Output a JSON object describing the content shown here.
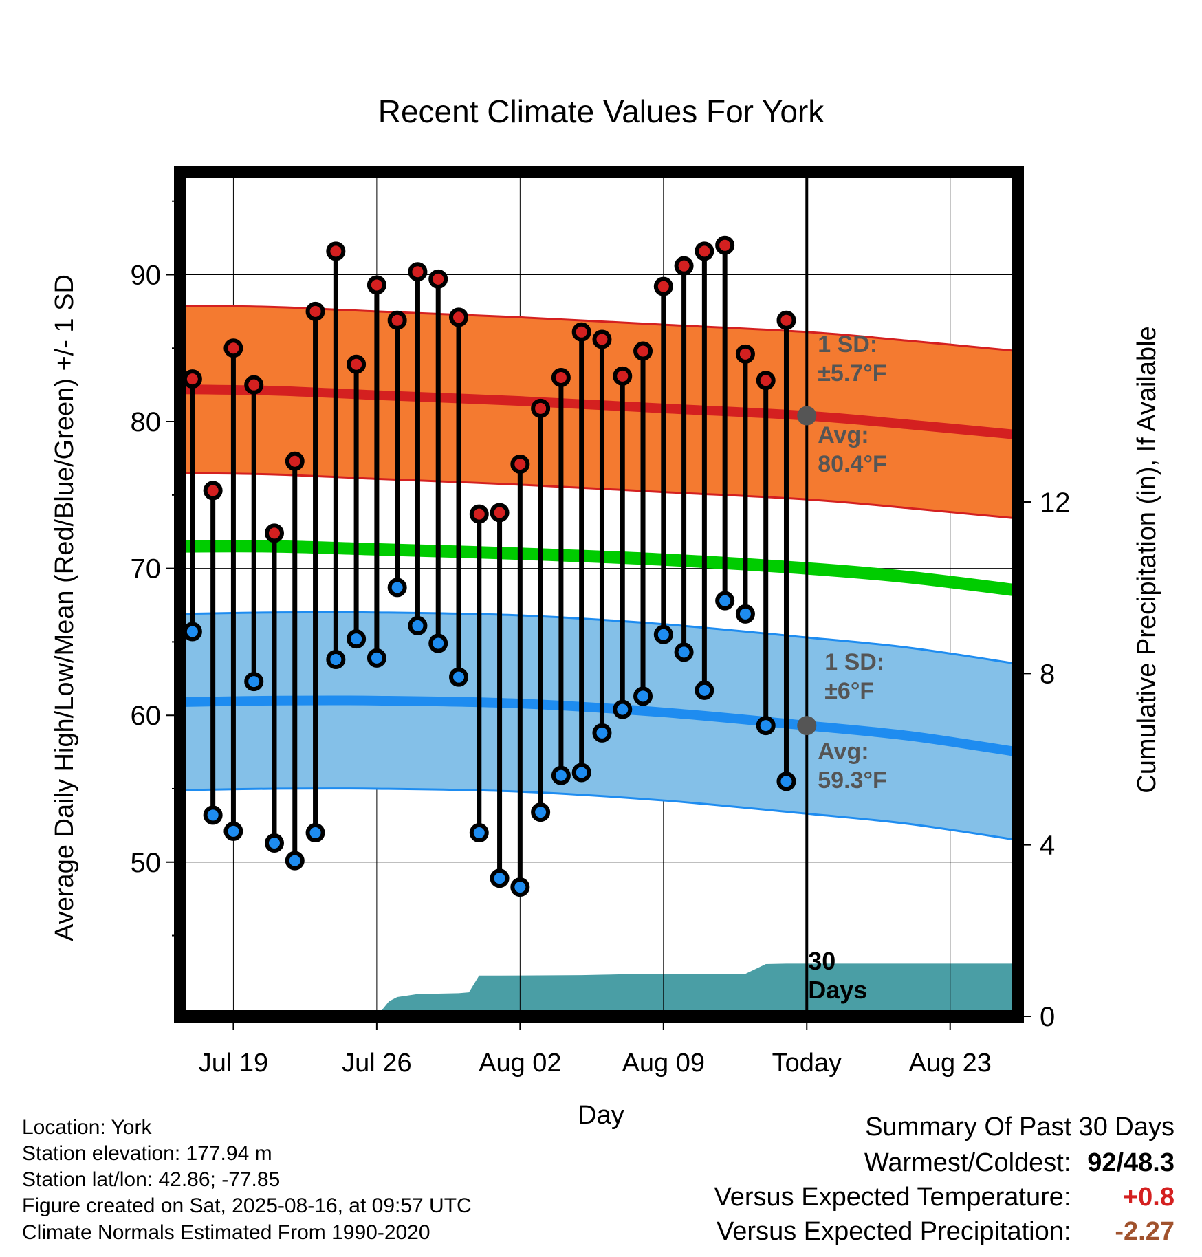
{
  "chart_data": {
    "type": "line",
    "title": "Recent Climate Values For York",
    "xlabel": "Day",
    "ylabel": "Average Daily High/Low/Mean (Red/Blue/Green) +/- 1 SD",
    "ylabel_right": "Cumulative Precipitation (in), If Available",
    "ylim": [
      39.5,
      97
    ],
    "y_ticks": [
      50,
      60,
      70,
      80,
      90
    ],
    "y_minor_ticks": [
      45,
      55,
      65,
      75,
      85,
      95
    ],
    "ylim_right": [
      0,
      19.7
    ],
    "y_right_ticks": [
      0,
      4,
      8,
      12
    ],
    "xlim": [
      -1.6,
      39.3
    ],
    "x_ticks": [
      {
        "day": 1,
        "label": "Jul 19"
      },
      {
        "day": 8,
        "label": "Jul 26"
      },
      {
        "day": 15,
        "label": "Aug 02"
      },
      {
        "day": 22,
        "label": "Aug 09"
      },
      {
        "day": 29,
        "label": "Today"
      },
      {
        "day": 36,
        "label": "Aug 23"
      }
    ],
    "today_day": 29,
    "days": [
      -1,
      0,
      1,
      2,
      3,
      4,
      5,
      6,
      7,
      8,
      9,
      10,
      11,
      12,
      13,
      14,
      15,
      16,
      17,
      18,
      19,
      20,
      21,
      22,
      23,
      24,
      25,
      26,
      27,
      28
    ],
    "series": [
      {
        "name": "High",
        "color": "#d42020",
        "values": [
          82.9,
          75.3,
          85.0,
          82.5,
          72.4,
          77.3,
          87.5,
          91.6,
          83.9,
          89.3,
          86.9,
          90.2,
          89.7,
          87.1,
          73.7,
          73.8,
          77.1,
          80.9,
          83.0,
          86.1,
          85.6,
          83.1,
          84.8,
          89.2,
          90.6,
          91.6,
          92.0,
          84.6,
          82.8,
          86.9
        ]
      },
      {
        "name": "Low",
        "color": "#1e8cf0",
        "values": [
          65.7,
          53.2,
          52.1,
          62.3,
          51.3,
          50.1,
          52.0,
          63.8,
          65.2,
          63.9,
          68.7,
          66.1,
          64.9,
          62.6,
          52.0,
          48.9,
          48.3,
          53.4,
          55.9,
          56.1,
          58.8,
          60.4,
          61.3,
          65.5,
          64.3,
          61.7,
          67.8,
          66.9,
          59.3,
          55.5
        ]
      }
    ],
    "normals": {
      "days": [
        -1.6,
        3,
        8,
        15,
        22,
        29,
        34,
        39.3
      ],
      "high_mean": [
        82.2,
        82.1,
        81.8,
        81.4,
        80.9,
        80.4,
        79.8,
        79.1
      ],
      "high_sd": 5.7,
      "mean": [
        71.5,
        71.5,
        71.3,
        71.0,
        70.6,
        70.0,
        69.4,
        68.5
      ],
      "low_mean": [
        60.9,
        61.0,
        61.0,
        60.8,
        60.2,
        59.3,
        58.6,
        57.5
      ],
      "low_sd": 6
    },
    "precipitation": {
      "color": "#4a9ea5",
      "days": [
        -1.6,
        8.0,
        8.6,
        9.0,
        10.0,
        11.0,
        12.0,
        12.5,
        13.0,
        14.0,
        18.0,
        19.0,
        20.0,
        22.0,
        23.0,
        26.0,
        27.0,
        28.0,
        39.3
      ],
      "cumulative": [
        0,
        0,
        0.35,
        0.45,
        0.52,
        0.53,
        0.54,
        0.56,
        0.95,
        0.95,
        0.96,
        0.97,
        0.98,
        0.98,
        0.98,
        0.99,
        1.22,
        1.23,
        1.23
      ]
    },
    "high_colors": {
      "band": "#f47a30",
      "band_edge": "#d42020",
      "mean": "#d42020"
    },
    "mean_color": "#00cc00",
    "low_colors": {
      "band": "#84c0e8",
      "band_edge": "#1e8cf0",
      "mean": "#1e8cf0"
    },
    "annotations": {
      "high_sd_label": "1 SD:",
      "high_sd_value": "±5.7°F",
      "high_avg_label": "Avg:",
      "high_avg_value": "80.4°F",
      "low_sd_label": "1 SD:",
      "low_sd_value": "±6°F",
      "low_avg_label": "Avg:",
      "low_avg_value": "59.3°F",
      "days_number": "30",
      "days_word": "Days",
      "color": "#555555"
    }
  },
  "info": {
    "location": "Location: York",
    "elevation": "Station elevation: 177.94 m",
    "latlon": "Station lat/lon: 42.86; -77.85",
    "created": "Figure created on Sat, 2025-08-16, at 09:57 UTC",
    "normals": "Climate Normals Estimated From 1990-2020"
  },
  "summary": {
    "title": "Summary Of Past 30 Days",
    "warmest_label": "Warmest/Coldest:",
    "warmest_value": "92/48.3",
    "temp_label": "Versus Expected Temperature:",
    "temp_value": "+0.8",
    "temp_color": "#d42020",
    "precip_label": "Versus Expected Precipitation:",
    "precip_value": "-2.27",
    "precip_color": "#a0522d"
  }
}
